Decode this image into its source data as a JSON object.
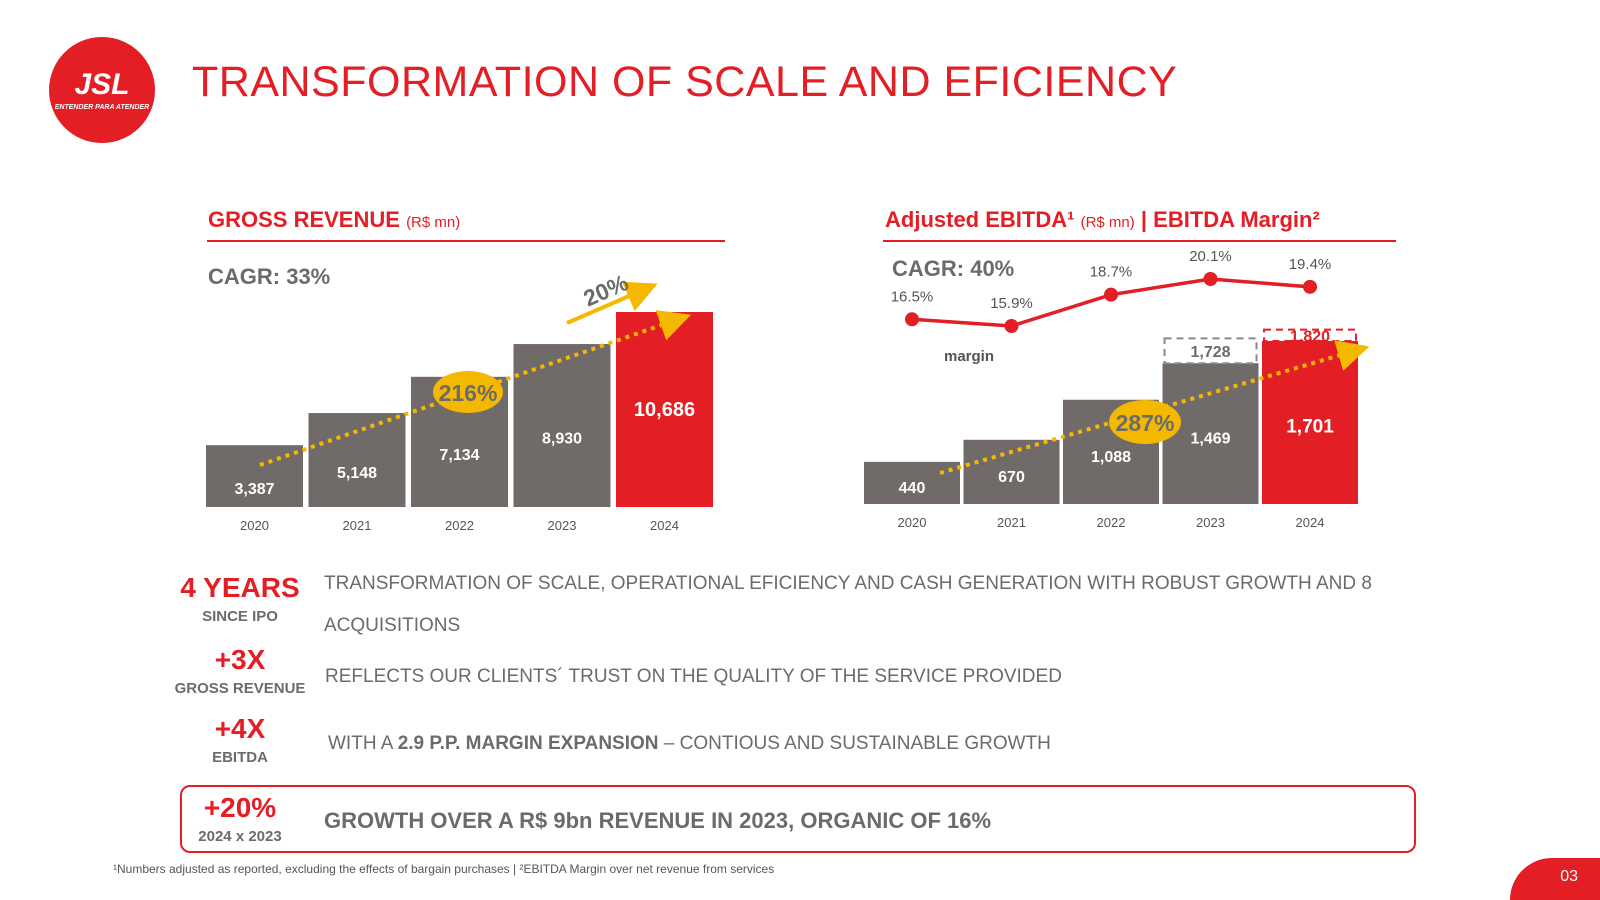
{
  "logo": {
    "brand": "JSL",
    "tagline": "ENTENDER PARA ATENDER"
  },
  "title": "TRANSFORMATION OF SCALE AND EFICIENCY",
  "revenue_chart": {
    "heading": "GROSS REVENUE",
    "unit": "(R$ mn)",
    "cagr": "CAGR: 33%",
    "growth_label": "20%",
    "badge": "216%"
  },
  "ebitda_chart": {
    "heading_a": "Adjusted EBITDA¹",
    "unit": "(R$ mn)",
    "heading_b": "| EBITDA Margin²",
    "cagr": "CAGR: 40%",
    "badge": "287%",
    "margin_label": "margin"
  },
  "chart_data": [
    {
      "type": "bar",
      "title": "GROSS REVENUE (R$ mn)",
      "categories": [
        "2020",
        "2021",
        "2022",
        "2023",
        "2024"
      ],
      "values": [
        3387,
        5148,
        7134,
        8930,
        10686
      ],
      "labels": [
        "3,387",
        "5,148",
        "7,134",
        "8,930",
        "10,686"
      ],
      "highlight_index": 4,
      "annotations": [
        "CAGR: 33%",
        "216%",
        "20%"
      ],
      "ylim": [
        0,
        10686
      ]
    },
    {
      "type": "bar",
      "title": "Adjusted EBITDA (R$ mn) | EBITDA Margin",
      "categories": [
        "2020",
        "2021",
        "2022",
        "2023",
        "2024"
      ],
      "series": [
        {
          "name": "Adjusted EBITDA",
          "values": [
            440,
            670,
            1088,
            1469,
            1701
          ],
          "labels": [
            "440",
            "670",
            "1,088",
            "1,469",
            "1,701"
          ]
        },
        {
          "name": "Reported EBITDA (dashed)",
          "values": [
            null,
            null,
            null,
            1728,
            1820
          ],
          "labels": [
            "",
            "",
            "",
            "1,728",
            "1,820"
          ]
        },
        {
          "name": "EBITDA Margin (%)",
          "type": "line",
          "values": [
            16.5,
            15.9,
            18.7,
            20.1,
            19.4
          ],
          "labels": [
            "16.5%",
            "15.9%",
            "18.7%",
            "20.1%",
            "19.4%"
          ]
        }
      ],
      "highlight_index": 4,
      "annotations": [
        "CAGR: 40%",
        "287%",
        "margin"
      ],
      "ylim": [
        0,
        1820
      ]
    }
  ],
  "stats": [
    {
      "big": "4 YEARS",
      "small": "SINCE IPO"
    },
    {
      "big": "+3X",
      "small": "GROSS REVENUE"
    },
    {
      "big": "+4X",
      "small": "EBITDA"
    },
    {
      "big": "+20%",
      "small": "2024 x 2023"
    }
  ],
  "descriptions": {
    "d1": "TRANSFORMATION OF SCALE, OPERATIONAL EFICIENCY AND CASH GENERATION WITH ROBUST GROWTH AND 8 ACQUISITIONS",
    "d2": "REFLECTS OUR CLIENTS´ TRUST ON THE QUALITY OF THE SERVICE PROVIDED",
    "d3_pre": "WITH A ",
    "d3_bold": "2.9 P.P. MARGIN EXPANSION",
    "d3_post": " – CONTIOUS AND SUSTAINABLE GROWTH",
    "d4": "GROWTH OVER A R$ 9bn REVENUE IN 2023, ORGANIC OF 16%"
  },
  "footnote": "¹Numbers adjusted as reported, excluding the effects of bargain purchases | ²EBITDA Margin over net revenue from services",
  "page_number": "03",
  "colors": {
    "red": "#e31e24",
    "gray_bar": "#706b69",
    "yellow": "#f5b800",
    "text_gray": "#6b6b6b"
  }
}
